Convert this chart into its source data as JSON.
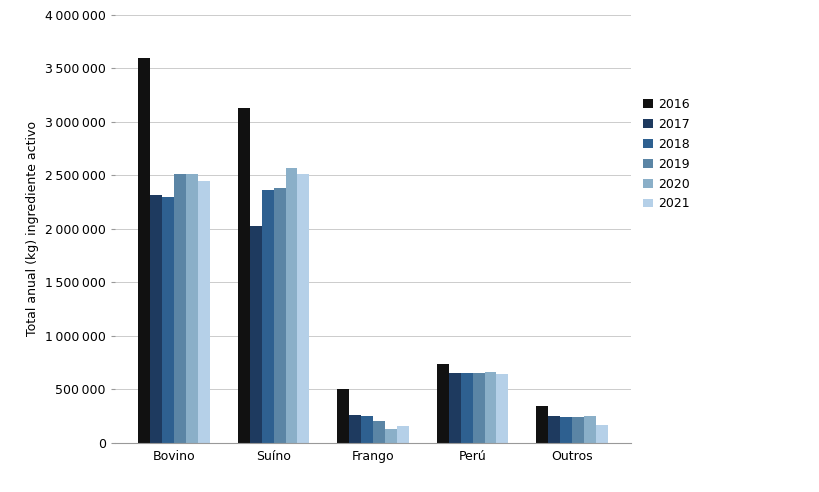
{
  "categories": [
    "Bovino",
    "Suíno",
    "Frango",
    "Perú",
    "Outros"
  ],
  "years": [
    "2016",
    "2017",
    "2018",
    "2019",
    "2020",
    "2021"
  ],
  "values": {
    "Bovino": [
      3600000,
      2320000,
      2300000,
      2510000,
      2510000,
      2450000
    ],
    "Suíno": [
      3130000,
      2030000,
      2360000,
      2380000,
      2570000,
      2510000
    ],
    "Frango": [
      500000,
      260000,
      250000,
      200000,
      130000,
      155000
    ],
    "Perú": [
      740000,
      650000,
      650000,
      650000,
      660000,
      640000
    ],
    "Outros": [
      340000,
      250000,
      240000,
      245000,
      250000,
      165000
    ]
  },
  "colors": [
    "#111111",
    "#1e3a5f",
    "#2e6090",
    "#5b85a5",
    "#8aafc8",
    "#b5d0e8"
  ],
  "ylabel": "Total anual (kg) ingrediente activo",
  "ylim": [
    0,
    4000000
  ],
  "yticks": [
    0,
    500000,
    1000000,
    1500000,
    2000000,
    2500000,
    3000000,
    3500000,
    4000000
  ],
  "background_color": "#ffffff",
  "bar_width": 0.12,
  "legend_fontsize": 9,
  "tick_fontsize": 9,
  "label_fontsize": 9
}
